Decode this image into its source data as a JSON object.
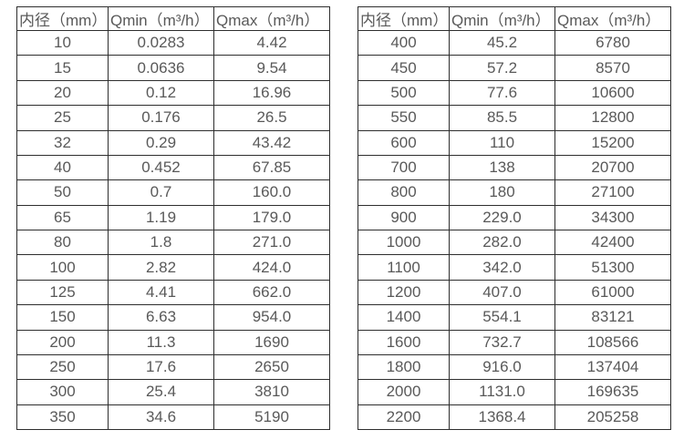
{
  "colors": {
    "background": "#ffffff",
    "border": "#2e2e2e",
    "text": "#595959"
  },
  "left_table": {
    "headers": [
      "内径（mm）",
      "Qmin（m³/h）",
      "Qmax（m³/h）"
    ],
    "rows": [
      [
        "10",
        "0.0283",
        "4.42"
      ],
      [
        "15",
        "0.0636",
        "9.54"
      ],
      [
        "20",
        "0.12",
        "16.96"
      ],
      [
        "25",
        "0.176",
        "26.5"
      ],
      [
        "32",
        "0.29",
        "43.42"
      ],
      [
        "40",
        "0.452",
        "67.85"
      ],
      [
        "50",
        "0.7",
        "160.0"
      ],
      [
        "65",
        "1.19",
        "179.0"
      ],
      [
        "80",
        "1.8",
        "271.0"
      ],
      [
        "100",
        "2.82",
        "424.0"
      ],
      [
        "125",
        "4.41",
        "662.0"
      ],
      [
        "150",
        "6.63",
        "954.0"
      ],
      [
        "200",
        "11.3",
        "1690"
      ],
      [
        "250",
        "17.6",
        "2650"
      ],
      [
        "300",
        "25.4",
        "3810"
      ],
      [
        "350",
        "34.6",
        "5190"
      ]
    ]
  },
  "right_table": {
    "headers": [
      "内径（mm）",
      "Qmin（m³/h）",
      "Qmax（m³/h）"
    ],
    "rows": [
      [
        "400",
        "45.2",
        "6780"
      ],
      [
        "450",
        "57.2",
        "8570"
      ],
      [
        "500",
        "77.6",
        "10600"
      ],
      [
        "550",
        "85.5",
        "12800"
      ],
      [
        "600",
        "110",
        "15200"
      ],
      [
        "700",
        "138",
        "20700"
      ],
      [
        "800",
        "180",
        "27100"
      ],
      [
        "900",
        "229.0",
        "34300"
      ],
      [
        "1000",
        "282.0",
        "42400"
      ],
      [
        "1100",
        "342.0",
        "51300"
      ],
      [
        "1200",
        "407.0",
        "61000"
      ],
      [
        "1400",
        "554.1",
        "83121"
      ],
      [
        "1600",
        "732.7",
        "108566"
      ],
      [
        "1800",
        "916.0",
        "137404"
      ],
      [
        "2000",
        "1131.0",
        "169635"
      ],
      [
        "2200",
        "1368.4",
        "205258"
      ]
    ]
  }
}
